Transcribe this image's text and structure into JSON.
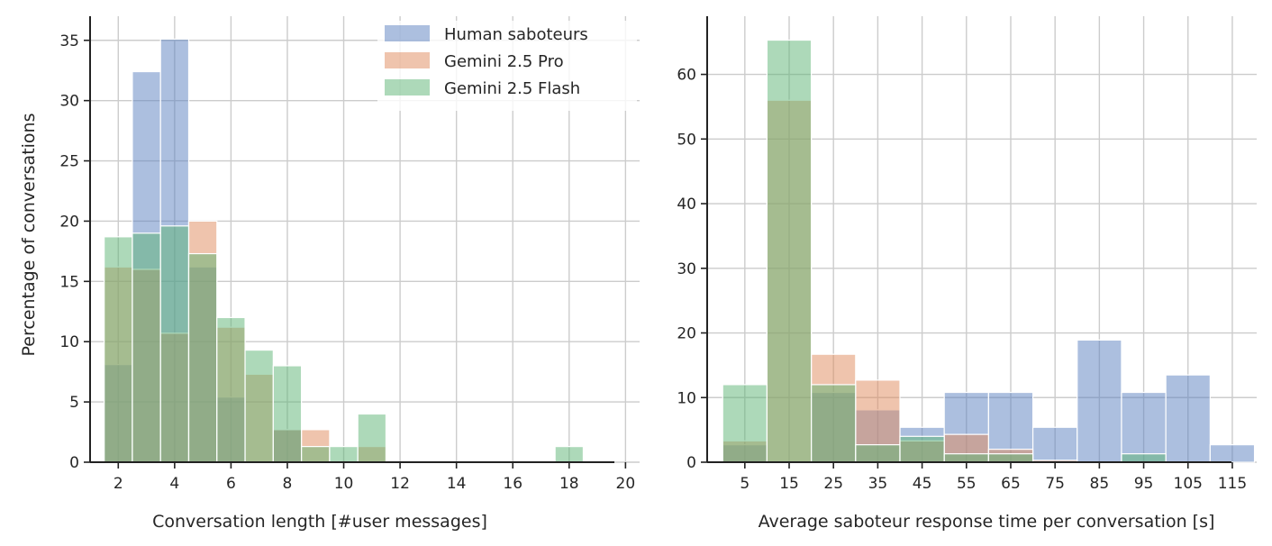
{
  "colors": {
    "human": "#5a7fbf",
    "pro": "#e08a5c",
    "flash": "#5bb374",
    "grid": "#cccccc",
    "axis": "#222222"
  },
  "chart_data": [
    {
      "type": "bar",
      "xlabel": "Conversation length [#user messages]",
      "ylabel": "Percentage of conversations",
      "xlim": [
        1.0,
        20.5
      ],
      "ylim": [
        0,
        37
      ],
      "xticks": [
        2,
        4,
        6,
        8,
        10,
        12,
        14,
        16,
        18,
        20
      ],
      "yticks": [
        0,
        5,
        10,
        15,
        20,
        25,
        30,
        35
      ],
      "bin_width": 1,
      "grid": true,
      "legend_position": "top-right",
      "legend": [
        "Human saboteurs",
        "Gemini 2.5 Pro",
        "Gemini 2.5 Flash"
      ],
      "series": [
        {
          "name": "Human saboteurs",
          "color_key": "human",
          "x": [
            2,
            3,
            4,
            5,
            6,
            8
          ],
          "values": [
            8.1,
            32.4,
            35.1,
            16.2,
            5.4,
            2.7
          ]
        },
        {
          "name": "Gemini 2.5 Pro",
          "color_key": "pro",
          "x": [
            2,
            3,
            4,
            5,
            6,
            7,
            8,
            9,
            11
          ],
          "values": [
            16.2,
            16.0,
            10.7,
            20.0,
            11.2,
            7.3,
            2.7,
            2.7,
            1.3
          ]
        },
        {
          "name": "Gemini 2.5 Flash",
          "color_key": "flash",
          "x": [
            2,
            3,
            4,
            5,
            6,
            7,
            8,
            9,
            10,
            11,
            18
          ],
          "values": [
            18.7,
            19.0,
            19.6,
            17.3,
            12.0,
            9.3,
            8.0,
            1.3,
            1.3,
            4.0,
            1.3
          ]
        }
      ]
    },
    {
      "type": "bar",
      "xlabel": "Average saboteur response time per conversation [s]",
      "ylabel": "",
      "xlim": [
        -3.5,
        120.5
      ],
      "ylim": [
        0,
        69
      ],
      "xticks": [
        5,
        15,
        25,
        35,
        45,
        55,
        65,
        75,
        85,
        95,
        105,
        115
      ],
      "yticks": [
        0,
        10,
        20,
        30,
        40,
        50,
        60
      ],
      "bin_width": 10,
      "grid": true,
      "series": [
        {
          "name": "Human saboteurs",
          "color_key": "human",
          "x": [
            5,
            25,
            35,
            45,
            55,
            65,
            75,
            85,
            95,
            105,
            115
          ],
          "values": [
            2.7,
            10.8,
            8.1,
            5.4,
            10.8,
            10.8,
            5.4,
            18.9,
            10.8,
            13.5,
            2.7
          ]
        },
        {
          "name": "Gemini 2.5 Pro",
          "color_key": "pro",
          "x": [
            5,
            15,
            25,
            35,
            45,
            55,
            65,
            75
          ],
          "values": [
            3.3,
            56.0,
            16.7,
            12.7,
            3.3,
            4.3,
            2.0,
            0.3
          ]
        },
        {
          "name": "Gemini 2.5 Flash",
          "color_key": "flash",
          "x": [
            5,
            15,
            25,
            35,
            45,
            55,
            65,
            95
          ],
          "values": [
            12.0,
            65.3,
            12.0,
            2.7,
            4.0,
            1.3,
            1.3,
            1.3
          ]
        }
      ]
    }
  ]
}
